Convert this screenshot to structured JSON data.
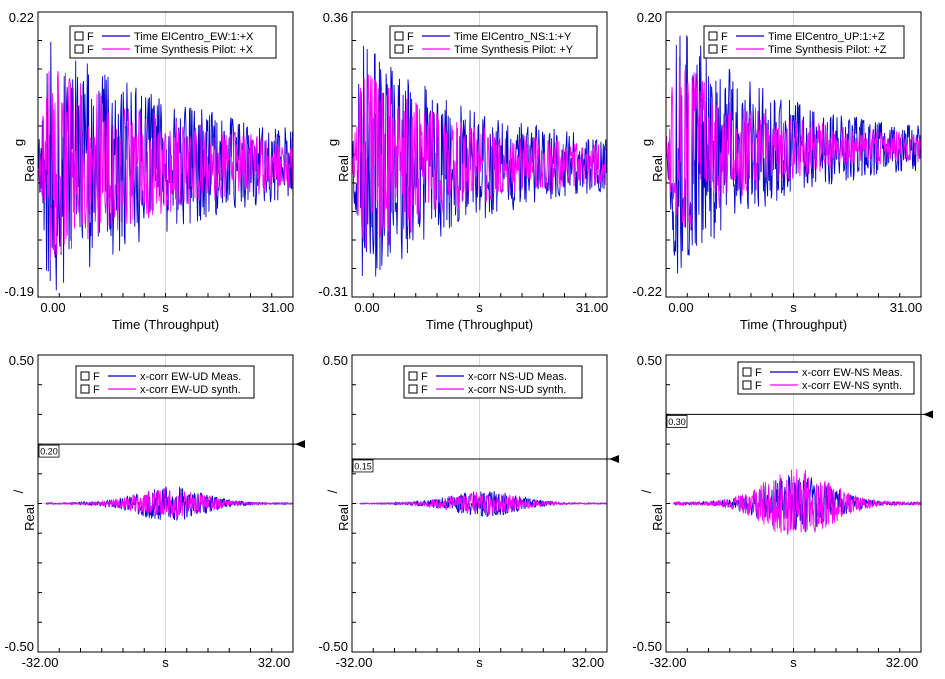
{
  "colors": {
    "meas": "#0000cc",
    "synth": "#ff00ff",
    "axis": "#000000",
    "grid": "#d8d8d8",
    "background": "#ffffff"
  },
  "legend_checkbox_label": "F",
  "chart_data": [
    {
      "type": "line",
      "variant": "time",
      "ymax_label": "0.22",
      "ymin_label": "-0.19",
      "ylim": [
        -0.19,
        0.22
      ],
      "ylabel_unit": "g",
      "ylabel_kind": "Real",
      "xlabel_unit": "s",
      "xlabel": "Time (Throughput)",
      "xlim": [
        0,
        31
      ],
      "x_tick_labels": [
        "0.00",
        "31.00"
      ],
      "decay": 0.55,
      "seed": 11,
      "series": [
        {
          "name": "Time ElCentro_EW:1:+X",
          "role": "meas",
          "amp": 0.19
        },
        {
          "name": "Time Synthesis Pilot: +X",
          "role": "synth",
          "amp": 0.15
        }
      ]
    },
    {
      "type": "line",
      "variant": "time",
      "ymax_label": "0.36",
      "ymin_label": "-0.31",
      "ylim": [
        -0.31,
        0.36
      ],
      "ylabel_unit": "g",
      "ylabel_kind": "Real",
      "xlabel_unit": "s",
      "xlabel": "Time (Throughput)",
      "xlim": [
        0,
        31
      ],
      "x_tick_labels": [
        "0.00",
        "31.00"
      ],
      "decay": 0.7,
      "seed": 23,
      "series": [
        {
          "name": "Time ElCentro_NS:1:+Y",
          "role": "meas",
          "amp": 0.3
        },
        {
          "name": "Time Synthesis Pilot: +Y",
          "role": "synth",
          "amp": 0.24
        }
      ]
    },
    {
      "type": "line",
      "variant": "time",
      "ymax_label": "0.20",
      "ymin_label": "-0.22",
      "ylim": [
        -0.22,
        0.2
      ],
      "ylabel_unit": "g",
      "ylabel_kind": "Real",
      "xlabel_unit": "s",
      "xlabel": "Time (Throughput)",
      "xlim": [
        0,
        31
      ],
      "x_tick_labels": [
        "0.00",
        "31.00"
      ],
      "decay": 0.85,
      "seed": 37,
      "series": [
        {
          "name": "Time ElCentro_UP:1:+Z",
          "role": "meas",
          "amp": 0.19
        },
        {
          "name": "Time Synthesis Pilot: +Z",
          "role": "synth",
          "amp": 0.14
        }
      ]
    },
    {
      "type": "line",
      "variant": "xcorr",
      "ymax_label": "0.50",
      "ymin_label": "-0.50",
      "ylim": [
        -0.5,
        0.5
      ],
      "ylabel_unit": "/",
      "ylabel_kind": "Real",
      "xlabel_unit": "s",
      "xlim": [
        -32,
        32
      ],
      "x_tick_labels": [
        "-32.00",
        "32.00"
      ],
      "threshold": 0.2,
      "threshold_label": "0.20",
      "seed": 51,
      "series": [
        {
          "name": "x-corr EW-UD Meas.",
          "role": "meas",
          "amp": 0.06
        },
        {
          "name": "x-corr EW-UD synth.",
          "role": "synth",
          "amp": 0.05
        }
      ]
    },
    {
      "type": "line",
      "variant": "xcorr",
      "ymax_label": "0.50",
      "ymin_label": "-0.50",
      "ylim": [
        -0.5,
        0.5
      ],
      "ylabel_unit": "/",
      "ylabel_kind": "Real",
      "xlabel_unit": "s",
      "xlim": [
        -32,
        32
      ],
      "x_tick_labels": [
        "-32.00",
        "32.00"
      ],
      "threshold": 0.15,
      "threshold_label": "0.15",
      "seed": 67,
      "series": [
        {
          "name": "x-corr NS-UD Meas.",
          "role": "meas",
          "amp": 0.045
        },
        {
          "name": "x-corr NS-UD synth.",
          "role": "synth",
          "amp": 0.04
        }
      ]
    },
    {
      "type": "line",
      "variant": "xcorr",
      "ymax_label": "0.50",
      "ymin_label": "-0.50",
      "ylim": [
        -0.5,
        0.5
      ],
      "ylabel_unit": "/",
      "ylabel_kind": "Real",
      "xlabel_unit": "s",
      "xlim": [
        -32,
        32
      ],
      "x_tick_labels": [
        "-32.00",
        "32.00"
      ],
      "threshold": 0.3,
      "threshold_label": "0.30",
      "seed": 83,
      "series": [
        {
          "name": "x-corr EW-NS Meas.",
          "role": "meas",
          "amp": 0.1
        },
        {
          "name": "x-corr EW-NS synth.",
          "role": "synth",
          "amp": 0.12
        }
      ]
    }
  ]
}
